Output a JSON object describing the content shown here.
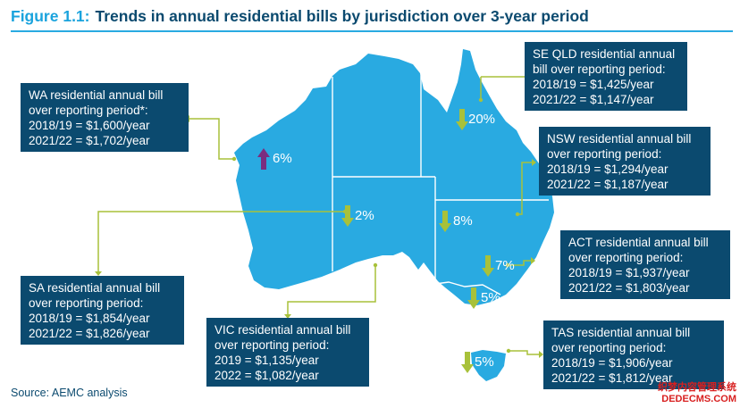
{
  "figure": {
    "label": "Figure 1.1:",
    "title": "Trends in annual residential bills by jurisdiction over 3-year period"
  },
  "colors": {
    "map_fill": "#29aae1",
    "box_fill": "#0b4a6f",
    "leader_line": "#a8c13a",
    "decrease_arrow": "#a8c13a",
    "increase_arrow": "#7b2d7f"
  },
  "regions": {
    "wa": {
      "line1": "WA residential annual bill",
      "line2": "over reporting period*:",
      "line3": "2018/19 = $1,600/year",
      "line4": "2021/22 = $1,702/year",
      "change": "6%",
      "direction": "increase",
      "icon": "arrow-up-icon"
    },
    "se_qld": {
      "line1": "SE QLD residential annual",
      "line2": "bill over reporting period:",
      "line3": "2018/19 = $1,425/year",
      "line4": "2021/22 = $1,147/year",
      "change": "20%",
      "direction": "decrease",
      "icon": "arrow-down-icon"
    },
    "nsw": {
      "line1": "NSW residential annual bill",
      "line2": "over reporting period:",
      "line3": "2018/19 = $1,294/year",
      "line4": "2021/22 = $1,187/year",
      "change": "8%",
      "direction": "decrease",
      "icon": "arrow-down-icon"
    },
    "act": {
      "line1": "ACT residential annual bill",
      "line2": "over reporting period:",
      "line3": "2018/19 = $1,937/year",
      "line4": "2021/22 = $1,803/year",
      "change": "7%",
      "direction": "decrease",
      "icon": "arrow-down-icon"
    },
    "sa": {
      "line1": "SA residential annual bill",
      "line2": "over reporting period:",
      "line3": "2018/19 = $1,854/year",
      "line4": "2021/22 = $1,826/year",
      "change": "2%",
      "direction": "decrease",
      "icon": "arrow-down-icon"
    },
    "vic": {
      "line1": "VIC residential annual bill",
      "line2": "over reporting period:",
      "line3": "2019 = $1,135/year",
      "line4": "2022 = $1,082/year",
      "change": "5%",
      "direction": "decrease",
      "icon": "arrow-down-icon"
    },
    "tas": {
      "line1": "TAS residential annual bill",
      "line2": "over reporting period:",
      "line3": "2018/19 = $1,906/year",
      "line4": "2021/22 = $1,812/year",
      "change": "5%",
      "direction": "decrease",
      "icon": "arrow-down-icon"
    }
  },
  "source": "Source: AEMC analysis",
  "watermark": {
    "line1": "织梦内容管理系统",
    "line2": "DEDECMS.COM"
  }
}
